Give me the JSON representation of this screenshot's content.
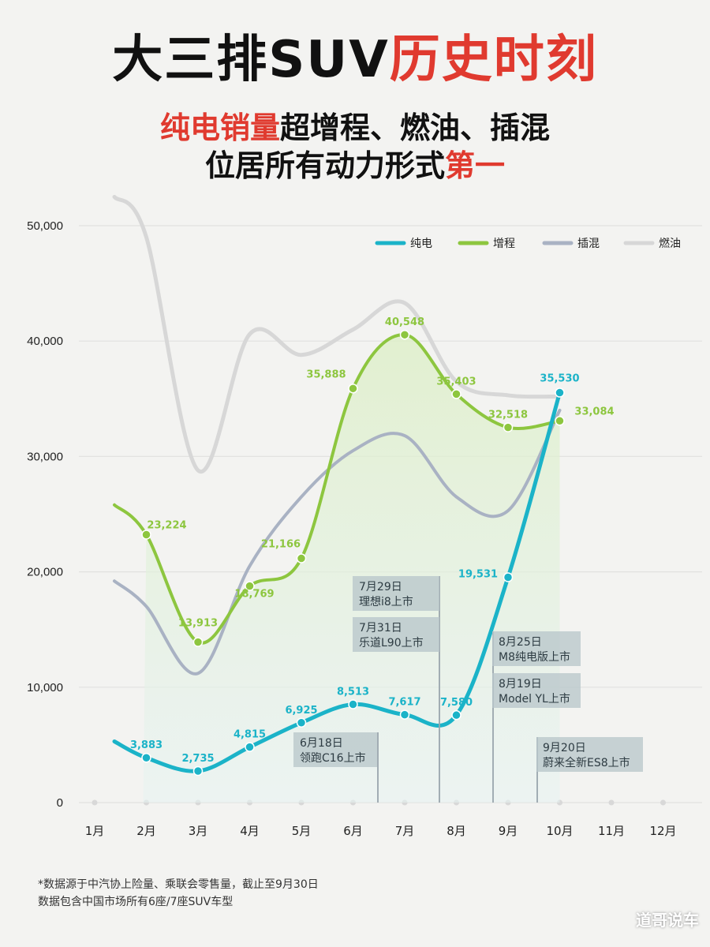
{
  "title": {
    "part1": "大三排SUV",
    "part2": "历史时刻"
  },
  "subtitle": {
    "line1_red": "纯电销量",
    "line1_rest": "超增程、燃油、插混",
    "line2_rest": "位居所有动力形式",
    "line2_red": "第一"
  },
  "chart_data": {
    "type": "line",
    "categories": [
      "1月",
      "2月",
      "3月",
      "4月",
      "5月",
      "6月",
      "7月",
      "8月",
      "9月",
      "10月",
      "11月",
      "12月"
    ],
    "yticks": [
      "50,000",
      "40,000",
      "30,000",
      "20,000",
      "10,000",
      "0"
    ],
    "ylim": [
      0,
      50000
    ],
    "grid": true,
    "legend_position": "top-right",
    "series": [
      {
        "name": "纯电",
        "color": "#1bb3c8",
        "values": [
          5300,
          3883,
          2735,
          4815,
          6925,
          8513,
          7617,
          7580,
          19531,
          35530,
          null,
          null
        ],
        "labels": [
          "",
          "3,883",
          "2,735",
          "4,815",
          "6,925",
          "8,513",
          "7,617",
          "7,580",
          "19,531",
          "35,530",
          "",
          ""
        ],
        "markers": [
          false,
          true,
          true,
          true,
          true,
          true,
          true,
          true,
          true,
          true,
          false,
          false
        ]
      },
      {
        "name": "增程",
        "color": "#8dc63f",
        "values": [
          25800,
          23224,
          13913,
          18769,
          21166,
          35888,
          40548,
          35403,
          32518,
          33084,
          null,
          null
        ],
        "labels": [
          "",
          "23,224",
          "13,913",
          "18,769",
          "21,166",
          "35,888",
          "40,548",
          "35,403",
          "32,518",
          "33,084",
          "",
          ""
        ],
        "markers": [
          false,
          true,
          true,
          true,
          true,
          true,
          true,
          true,
          true,
          true,
          false,
          false
        ]
      },
      {
        "name": "插混",
        "color": "#a9b2c3",
        "values": [
          19200,
          17000,
          11200,
          20500,
          26500,
          30500,
          31800,
          26500,
          25300,
          34000,
          null,
          null
        ],
        "labels": [],
        "markers": []
      },
      {
        "name": "燃油",
        "color": "#d7d7d7",
        "values": [
          52500,
          49000,
          28800,
          40600,
          38800,
          41000,
          43300,
          36500,
          35300,
          35200,
          null,
          null
        ],
        "labels": [],
        "markers": []
      }
    ],
    "annotations": [
      {
        "line1": "7月29日",
        "line2": "理想i8上市"
      },
      {
        "line1": "7月31日",
        "line2": "乐道L90上市"
      },
      {
        "line1": "6月18日",
        "line2": "领跑C16上市"
      },
      {
        "line1": "8月25日",
        "line2": "M8纯电版上市"
      },
      {
        "line1": "8月19日",
        "line2": "Model YL上市"
      },
      {
        "line1": "9月20日",
        "line2": "蔚来全新ES8上市"
      }
    ]
  },
  "footnote": {
    "line1": "*数据源于中汽协上险量、乘联会零售量，截止至9月30日",
    "line2": "数据包含中国市场所有6座/7座SUV车型"
  },
  "watermark": "道哥说车"
}
